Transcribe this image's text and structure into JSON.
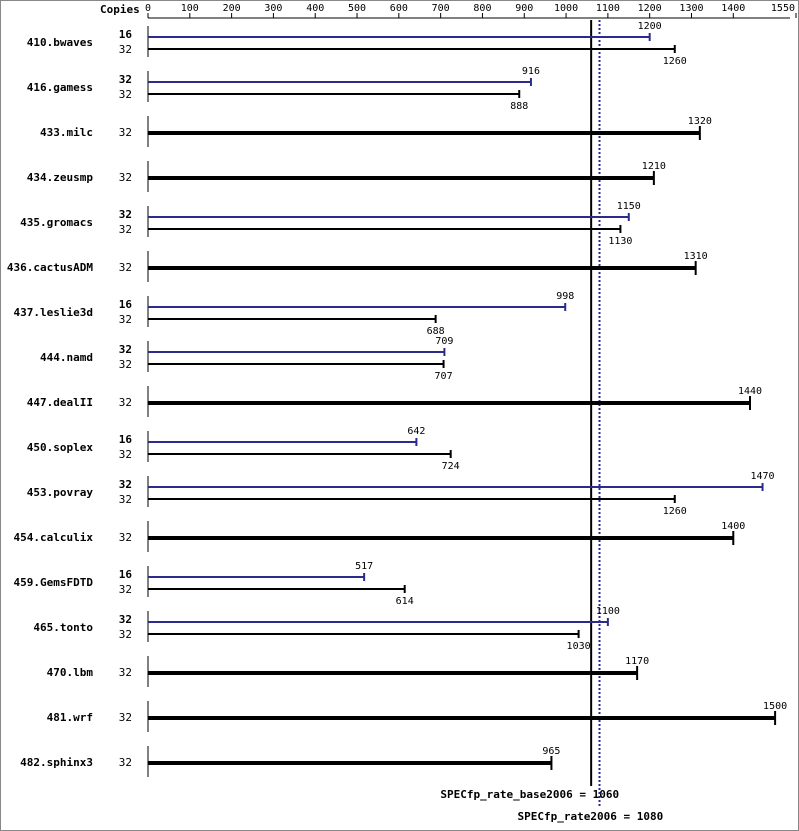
{
  "chart_data": {
    "type": "bar",
    "orientation": "horizontal",
    "x_label": "Copies",
    "categories": [
      "410.bwaves",
      "416.gamess",
      "433.milc",
      "434.zeusmp",
      "435.gromacs",
      "436.cactusADM",
      "437.leslie3d",
      "444.namd",
      "447.dealII",
      "450.soplex",
      "453.povray",
      "454.calculix",
      "459.GemsFDTD",
      "465.tonto",
      "470.lbm",
      "481.wrf",
      "482.sphinx3"
    ],
    "series": [
      {
        "color": "#2b2b8f",
        "copies": [
          16,
          32,
          null,
          null,
          32,
          null,
          16,
          32,
          null,
          16,
          32,
          null,
          16,
          32,
          null,
          null,
          null
        ],
        "values": [
          1200,
          916,
          null,
          null,
          1150,
          null,
          998,
          709,
          null,
          642,
          1470,
          null,
          517,
          1100,
          null,
          null,
          null
        ]
      },
      {
        "color": "#000000",
        "copies": [
          32,
          32,
          32,
          32,
          32,
          32,
          32,
          32,
          32,
          32,
          32,
          32,
          32,
          32,
          32,
          32,
          32
        ],
        "values": [
          1260,
          888,
          1320,
          1210,
          1130,
          1310,
          688,
          707,
          1440,
          724,
          1260,
          1400,
          614,
          1030,
          1170,
          1500,
          965
        ]
      }
    ],
    "xlim": [
      0,
      1550
    ],
    "xticks": [
      0,
      100,
      200,
      300,
      400,
      500,
      600,
      700,
      800,
      900,
      1000,
      1100,
      1200,
      1300,
      1400,
      1550
    ],
    "reference_lines": [
      {
        "value": 1060,
        "label": "SPECfp_rate_base2006 = 1060",
        "color": "#000000",
        "dashed": false
      },
      {
        "value": 1080,
        "label": "SPECfp_rate2006 = 1080",
        "color": "#2b2b8f",
        "dashed": true
      }
    ]
  }
}
